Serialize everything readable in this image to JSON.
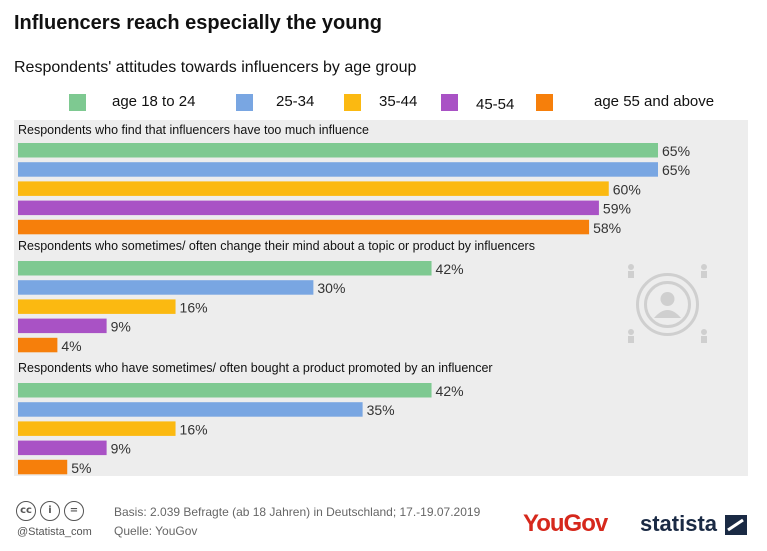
{
  "chart_data": {
    "type": "bar",
    "orientation": "horizontal",
    "title": "Influencers reach especially the young",
    "subtitle": "Respondents' attitudes towards influencers by age group",
    "categories": [
      "Respondents who find that influencers have too much influence",
      "Respondents who sometimes/ often change their mind about a topic or product by influencers",
      "Respondents who have sometimes/ often bought a product promoted by an influencer"
    ],
    "series": [
      {
        "name": "age 18 to 24",
        "color": "#7ec991",
        "values": [
          65,
          42,
          42
        ]
      },
      {
        "name": "25-34",
        "color": "#79a6e2",
        "values": [
          65,
          30,
          35
        ]
      },
      {
        "name": "35-44",
        "color": "#fbb911",
        "values": [
          60,
          16,
          16
        ]
      },
      {
        "name": "45-54",
        "color": "#a952c5",
        "values": [
          59,
          9,
          9
        ]
      },
      {
        "name": "age 55 and above",
        "color": "#f67f0b",
        "values": [
          58,
          4,
          5
        ]
      }
    ],
    "value_suffix": "%",
    "xlim": [
      0,
      65
    ],
    "legend_position": "top",
    "grid": false
  },
  "footer": {
    "license_credit": "@Statista_com",
    "basis": "Basis: 2.039 Befragte (ab 18 Jahren) in Deutschland; 17.-19.07.2019",
    "source": "Quelle: YouGov",
    "yougov_logo": "YouGov",
    "statista_logo": "statista"
  },
  "icons": {
    "watermark": "user-circle-icon",
    "license": [
      "creative-commons-icon",
      "attribution-icon",
      "no-derivatives-icon"
    ],
    "statista_mark": "statista-logo-icon"
  }
}
